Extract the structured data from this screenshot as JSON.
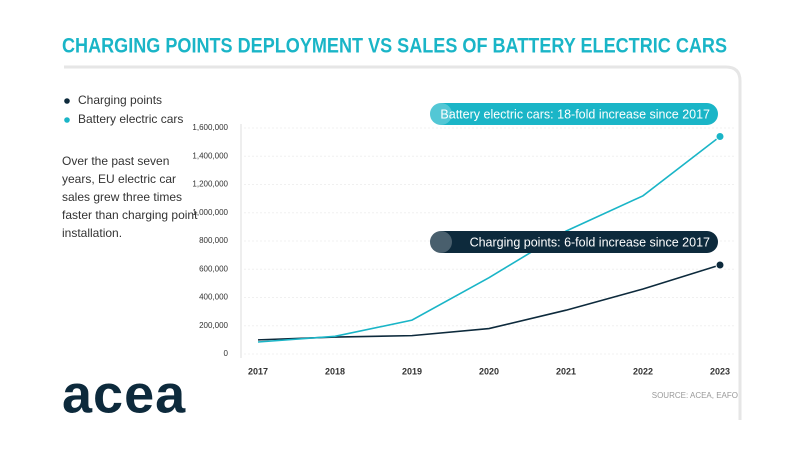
{
  "chart_data": {
    "type": "line",
    "title": "CHARGING POINTS DEPLOYMENT VS SALES OF BATTERY ELECTRIC CARS",
    "categories": [
      "2017",
      "2018",
      "2019",
      "2020",
      "2021",
      "2022",
      "2023"
    ],
    "series": [
      {
        "name": "Charging points",
        "color": "#0d2a3c",
        "values": [
          100000,
          120000,
          130000,
          180000,
          310000,
          460000,
          630000
        ]
      },
      {
        "name": "Battery electric cars",
        "color": "#1ab5c7",
        "values": [
          85000,
          125000,
          240000,
          540000,
          870000,
          1120000,
          1540000
        ]
      }
    ],
    "ylim": [
      0,
      1600000
    ],
    "yticks": [
      0,
      {
        "value": 200000,
        "label": "200,000"
      },
      {
        "value": 400000,
        "label": "400,000"
      },
      {
        "value": 600000,
        "label": "600,000"
      },
      {
        "value": 800000,
        "label": "800,000"
      },
      {
        "value": 1000000,
        "label": "1,000,000"
      },
      {
        "value": 1200000,
        "label": "1,200,000"
      },
      {
        "value": 1400000,
        "label": "1,400,000"
      },
      {
        "value": 1600000,
        "label": "1,600,000"
      }
    ],
    "grid": true,
    "legend": "top-left",
    "annotations": [
      "Battery electric cars: 18-fold increase since 2017",
      "Charging points: 6-fold increase since 2017"
    ],
    "description": "Over the past seven years, EU electric car sales grew three times faster than charging point installation.",
    "source": "SOURCE: ACEA, EAFO"
  },
  "logo": "acea"
}
